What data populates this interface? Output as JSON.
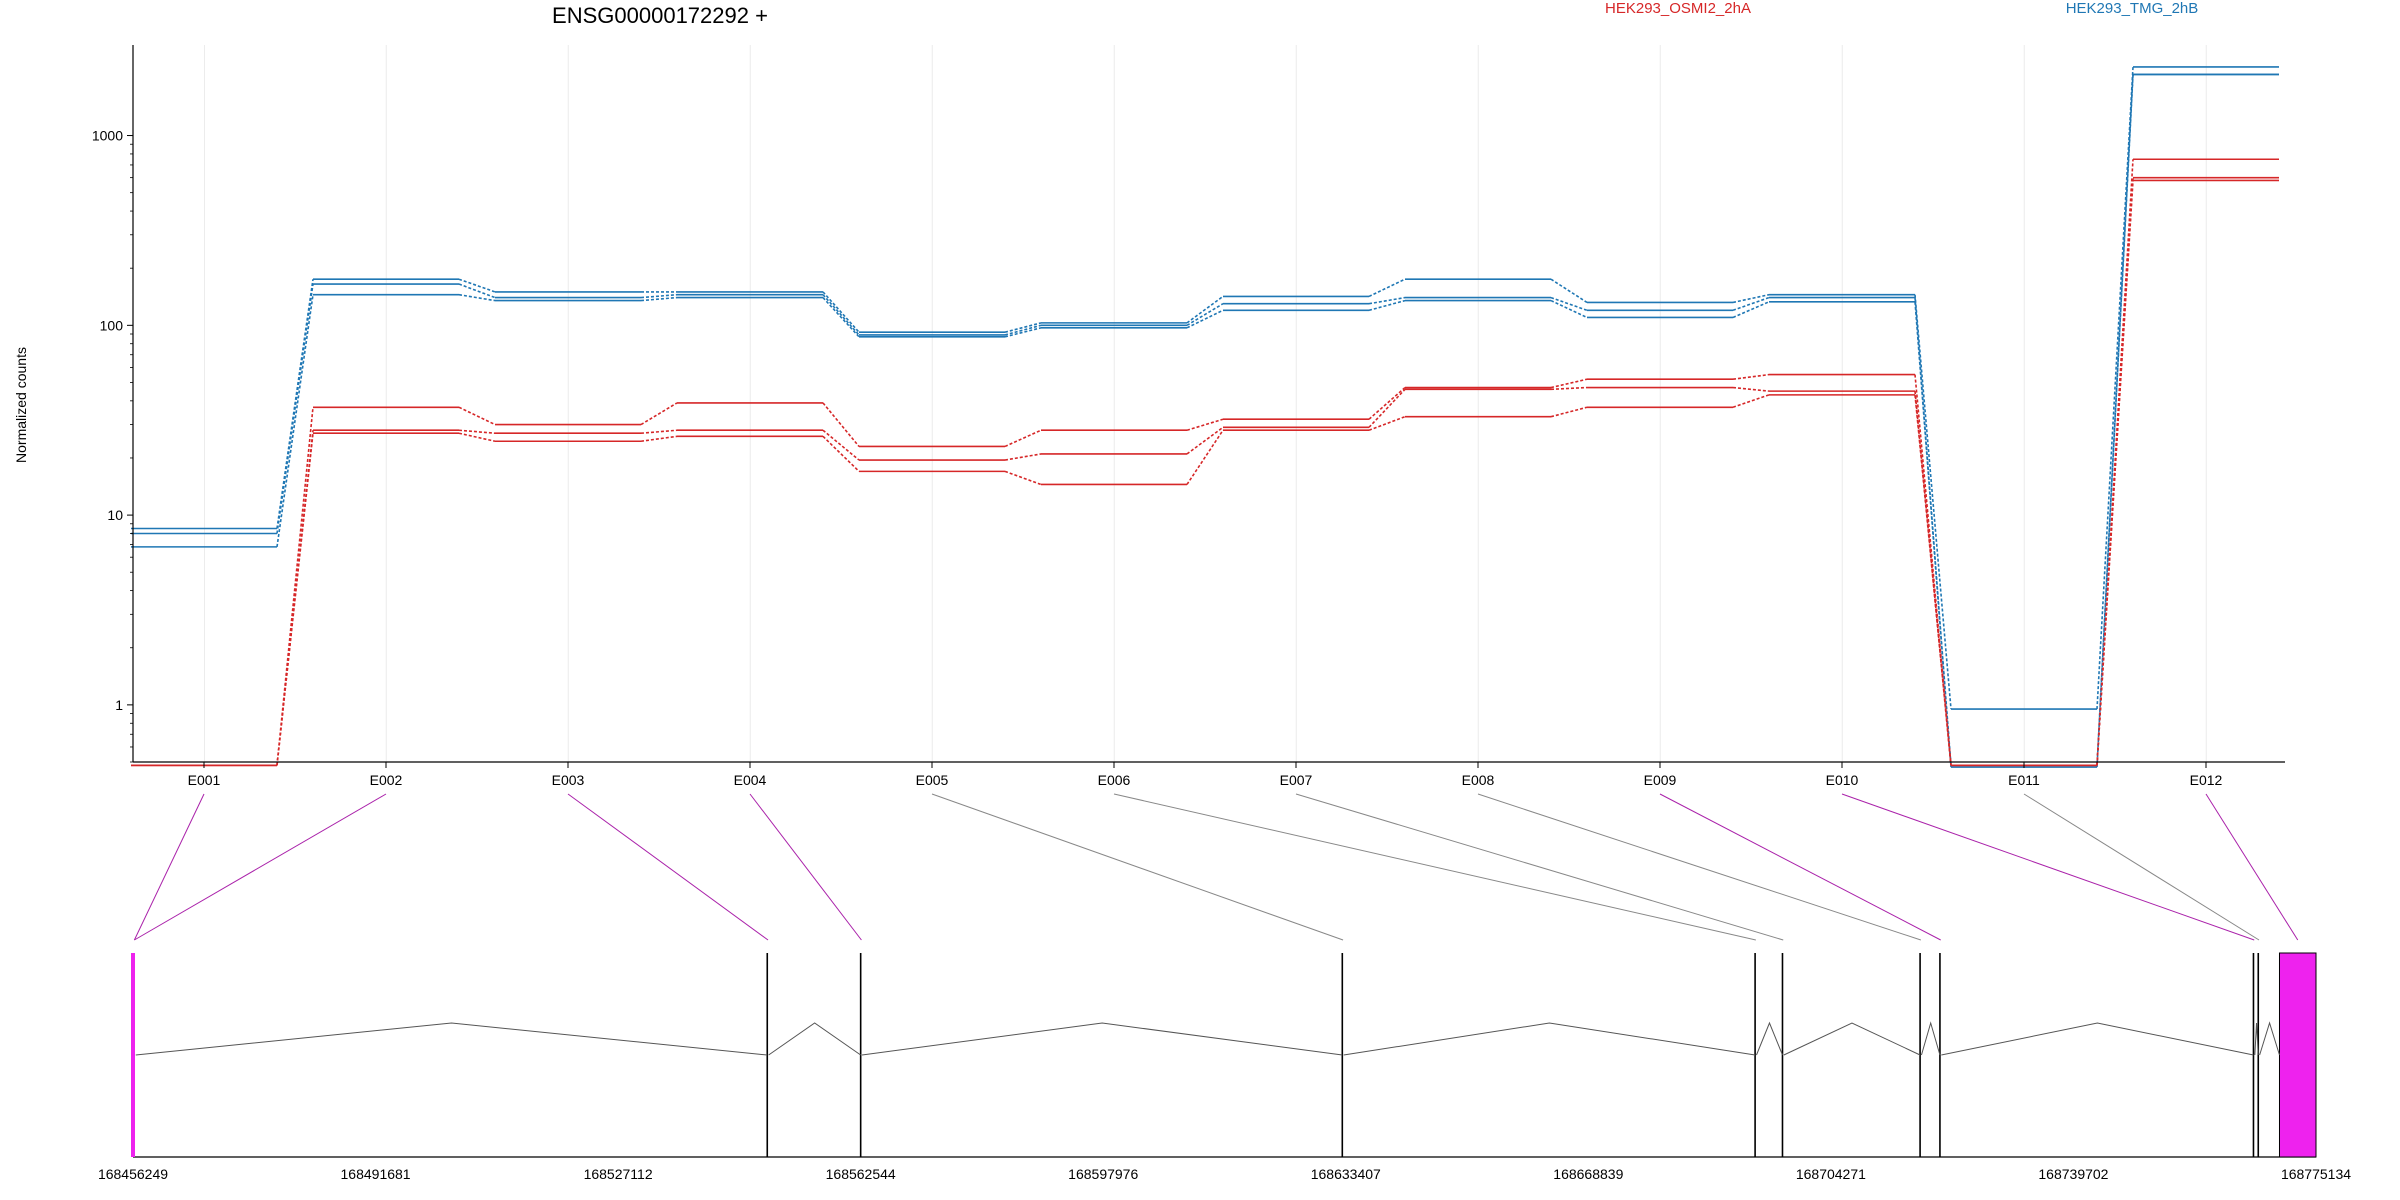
{
  "chart_data": {
    "type": "line",
    "title": "ENSG00000172292 +",
    "ylabel": "Normalized counts",
    "yscale": "log",
    "ylim": [
      0.5,
      3000
    ],
    "y_ticks": [
      1,
      10,
      100,
      1000
    ],
    "y_tick_labels": [
      "1",
      "10",
      "100",
      "1000"
    ],
    "categories": [
      "E001",
      "E002",
      "E003",
      "E004",
      "E005",
      "E006",
      "E007",
      "E008",
      "E009",
      "E010",
      "E011",
      "E012"
    ],
    "legend_position": "top",
    "legend": [
      {
        "name": "HEK293_OSMI2_2hA",
        "color": "#d62728"
      },
      {
        "name": "HEK293_TMG_2hB",
        "color": "#1f77b4"
      }
    ],
    "series": [
      {
        "group": "HEK293_TMG_2hB",
        "color": "#1f77b4",
        "values": [
          8.5,
          175,
          150,
          150,
          92,
          103,
          142,
          175,
          132,
          145,
          0.95,
          2300
        ]
      },
      {
        "group": "HEK293_TMG_2hB",
        "color": "#1f77b4",
        "values": [
          8.0,
          165,
          140,
          145,
          89,
          100,
          130,
          140,
          120,
          140,
          0.48,
          2100
        ]
      },
      {
        "group": "HEK293_TMG_2hB",
        "color": "#1f77b4",
        "values": [
          6.8,
          145,
          135,
          140,
          87,
          97,
          120,
          135,
          110,
          133,
          0.47,
          2100
        ]
      },
      {
        "group": "HEK293_OSMI2_2hA",
        "color": "#d62728",
        "values": [
          0.48,
          37,
          30,
          39,
          23,
          28,
          32,
          47,
          52,
          55,
          0.48,
          750
        ]
      },
      {
        "group": "HEK293_OSMI2_2hA",
        "color": "#d62728",
        "values": [
          0.48,
          28,
          27,
          28,
          19.5,
          21,
          29,
          46,
          47,
          45,
          0.48,
          600
        ]
      },
      {
        "group": "HEK293_OSMI2_2hA",
        "color": "#d62728",
        "values": [
          0.48,
          27,
          24.5,
          26,
          17,
          14.5,
          28,
          33,
          37,
          43,
          0.48,
          580
        ]
      }
    ],
    "gene_model": {
      "coord_ticks": [
        "168456249",
        "168491681",
        "168527112",
        "168562544",
        "168597976",
        "168633407",
        "168668839",
        "168704271",
        "168739702",
        "168775134"
      ],
      "coord_range": [
        168456249,
        168775134
      ],
      "exons": [
        {
          "label": "E001",
          "start": 168456249,
          "end": 168456650,
          "highlight": true
        },
        {
          "label": "E002",
          "start": 168456249,
          "end": 168456650,
          "highlight": true
        },
        {
          "label": "E003",
          "start": 168548900,
          "end": 168549100,
          "highlight": true
        },
        {
          "label": "E004",
          "start": 168562544,
          "end": 168562744,
          "highlight": true
        },
        {
          "label": "E005",
          "start": 168632900,
          "end": 168633100,
          "highlight": false
        },
        {
          "label": "E006",
          "start": 168693200,
          "end": 168693400,
          "highlight": false
        },
        {
          "label": "E007",
          "start": 168697200,
          "end": 168697400,
          "highlight": false
        },
        {
          "label": "E008",
          "start": 168717300,
          "end": 168717500,
          "highlight": false
        },
        {
          "label": "E009",
          "start": 168720200,
          "end": 168720400,
          "highlight": true
        },
        {
          "label": "E010",
          "start": 168766000,
          "end": 168766200,
          "highlight": true
        },
        {
          "label": "E011",
          "start": 168766700,
          "end": 168766900,
          "highlight": false
        },
        {
          "label": "E012",
          "start": 168769800,
          "end": 168775134,
          "highlight": true
        }
      ],
      "highlight_color": "#ee22ee",
      "connector_highlight_color": "#aa22aa",
      "connector_plain_color": "#888888"
    }
  }
}
